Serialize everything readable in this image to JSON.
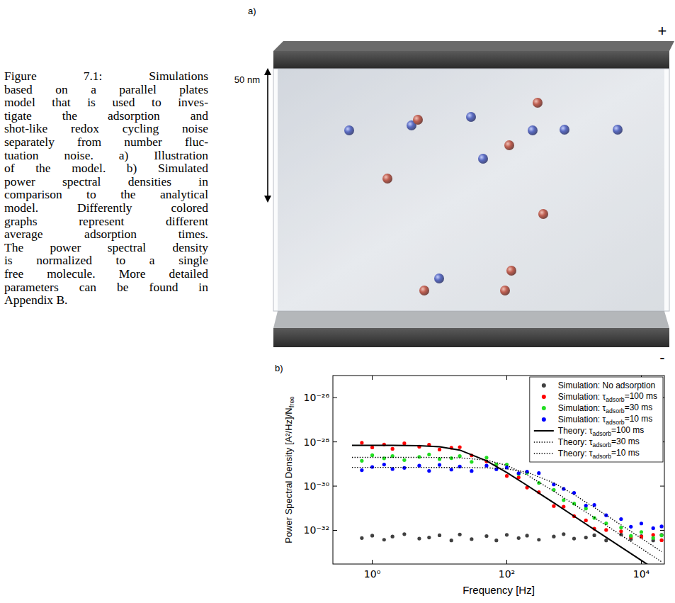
{
  "caption": {
    "lines": [
      "Figure 7.1: Simulations",
      "based on a parallel plates",
      "model that is used to inves-",
      "tigate the adsorption and",
      "shot-like redox cycling noise",
      "separately from number fluc-",
      "tuation noise. a) Illustration",
      "of the model. b) Simulated",
      "power spectral densities in",
      "comparison to the analytical",
      "model. Differently colored",
      "graphs represent different",
      "average adsorption times.",
      "The power spectral density",
      "is normalized to a single",
      "free molecule. More detailed",
      "parameters can be found in",
      "Appendix B."
    ]
  },
  "panel_a": {
    "label": "a)",
    "dimension": "50 nm",
    "positive": "+",
    "negative": "-"
  },
  "chart_data": {
    "type": "scatter",
    "panel_label": "b)",
    "x_label": "Frequency [Hz]",
    "y_label": "Power Spectral Density [A²/Hz]/Nfree",
    "log": true,
    "grid": false,
    "legend": "upper right",
    "xlim": [
      0.26,
      22000
    ],
    "ylim": [
      3e-34,
      1e-25
    ],
    "xticks": [
      {
        "value": 1,
        "label": "10⁰"
      },
      {
        "value": 100,
        "label": "10²"
      },
      {
        "value": 10000,
        "label": "10⁴"
      }
    ],
    "yticks": [
      {
        "value": 1e-32,
        "label": "10⁻³²"
      },
      {
        "value": 1e-30,
        "label": "10⁻³⁰"
      },
      {
        "value": 1e-28,
        "label": "10⁻²⁸"
      },
      {
        "value": 1e-26,
        "label": "10⁻²⁶"
      }
    ],
    "series": [
      {
        "name": "Simulation: No adsorption",
        "type": "scatter",
        "marker": "dot",
        "color": "#404040",
        "x": [
          0.7,
          1,
          1.5,
          2,
          3,
          5,
          7,
          10,
          15,
          20,
          30,
          50,
          70,
          100,
          150,
          200,
          300,
          500,
          700,
          1000,
          1500,
          2000,
          3000,
          5000,
          7000,
          10000,
          15000,
          20000
        ],
        "values": [
          4.5e-33,
          5.75e-33,
          3.75e-33,
          5.25e-33,
          6.75e-33,
          4.25e-33,
          4.75e-33,
          6e-33,
          3.5e-33,
          6.5e-33,
          4e-33,
          5.5e-33,
          3.5e-33,
          6.25e-33,
          4.5e-33,
          5.75e-33,
          3.75e-33,
          5.25e-33,
          6.75e-33,
          4.25e-33,
          4.75e-33,
          6e-33,
          3.5e-33,
          6.5e-33,
          4e-33,
          5.5e-33,
          3.5e-33,
          6.25e-33
        ]
      },
      {
        "name": "Simulation: τadsorb=100 ms",
        "type": "scatter",
        "marker": "dot",
        "color": "#ff0000",
        "x": [
          0.7,
          1,
          1.5,
          2,
          3,
          5,
          7,
          10,
          15,
          20,
          30,
          50,
          70,
          100,
          150,
          200,
          300,
          500,
          700,
          1000,
          1500,
          2000,
          3000,
          5000,
          7000,
          10000,
          15000,
          20000
        ],
        "values": [
          9.1e-29,
          5.6e-29,
          7.67e-29,
          4.87e-29,
          8.63e-29,
          6.06e-29,
          7.46e-29,
          4.52e-29,
          5.41e-29,
          5.76e-29,
          2.44e-29,
          1.33e-29,
          9.5e-30,
          2.88e-30,
          2.46e-30,
          8.64e-31,
          5.31e-31,
          1.26e-31,
          1.18e-31,
          4.38e-32,
          2.81e-32,
          1.19e-32,
          1.04e-32,
          9.11e-33,
          5.01e-33,
          5.17e-33,
          6.23e-33,
          3.58e-33
        ]
      },
      {
        "name": "Simulation: τadsorb=30 ms",
        "type": "scatter",
        "marker": "dot",
        "color": "#22dd22",
        "x": [
          0.7,
          1,
          1.5,
          2,
          3,
          5,
          7,
          10,
          15,
          20,
          30,
          50,
          70,
          100,
          150,
          200,
          300,
          500,
          700,
          1000,
          1500,
          2000,
          3000,
          5000,
          7000,
          10000,
          15000,
          20000
        ],
        "values": [
          1.4e-29,
          2.5e-29,
          1.8e-29,
          2.3e-29,
          1.5e-29,
          2.09e-29,
          2.69e-29,
          1.67e-29,
          1.84e-29,
          2.28e-29,
          1.25e-29,
          1.95e-29,
          9.68e-30,
          9.48e-30,
          3.52e-30,
          3.98e-30,
          1.4e-30,
          6.82e-31,
          2.32e-31,
          1.63e-31,
          9.72e-32,
          3.64e-32,
          2.07e-32,
          1.33e-32,
          5.66e-33,
          8.46e-33,
          4.54e-33,
          5.92e-33
        ]
      },
      {
        "name": "Simulation: τadsorb=10 ms",
        "type": "scatter",
        "marker": "dot",
        "color": "#0000ff",
        "x": [
          0.7,
          1,
          1.5,
          2,
          3,
          5,
          7,
          10,
          15,
          20,
          30,
          50,
          70,
          100,
          150,
          200,
          300,
          500,
          700,
          1000,
          1500,
          2000,
          3000,
          5000,
          7000,
          10000,
          15000,
          20000
        ],
        "values": [
          5.25e-30,
          7.35e-30,
          9.45e-30,
          5.95e-30,
          6.65e-30,
          8.4e-30,
          4.9e-30,
          9.1e-30,
          5.58e-30,
          7.66e-30,
          4.83e-30,
          8.41e-30,
          5.84e-30,
          6.93e-30,
          3.86e-30,
          4.48e-30,
          3.87e-30,
          1.19e-30,
          7.52e-31,
          4.94e-31,
          1.32e-31,
          1.4e-31,
          4.82e-32,
          3.25e-32,
          1.46e-32,
          2.05e-32,
          1.25e-32,
          1.51e-32
        ]
      },
      {
        "name": "Theory: τadsorb=100 ms",
        "type": "line",
        "line_style": "solid",
        "color": "#000000",
        "x": [
          0.5,
          1,
          2,
          5,
          10,
          20,
          50,
          100,
          200,
          500,
          1000,
          2000,
          5000,
          10000,
          20000
        ],
        "values": [
          7e-29,
          6.99e-29,
          6.96e-29,
          6.73e-29,
          6.03e-29,
          4.27e-29,
          1.4e-29,
          4.12e-30,
          1.08e-30,
          1.75e-31,
          4.37e-32,
          1.09e-32,
          1.75e-33,
          4.37e-34,
          1.09e-34
        ]
      },
      {
        "name": "Theory: τadsorb=30 ms",
        "type": "line",
        "line_style": "dotted",
        "color": "#000000",
        "x": [
          0.5,
          1,
          2,
          5,
          10,
          20,
          50,
          100,
          200,
          500,
          1000,
          2000,
          5000,
          10000,
          20000
        ],
        "values": [
          2e-29,
          2e-29,
          2e-29,
          1.99e-29,
          1.97e-29,
          1.9e-29,
          1.5e-29,
          8.62e-30,
          3.18e-30,
          5.88e-31,
          1.5e-31,
          3.78e-32,
          6.05e-33,
          1.51e-33,
          3.78e-34
        ]
      },
      {
        "name": "Theory: τadsorb=10 ms",
        "type": "line",
        "line_style": "dotted",
        "color": "#000000",
        "x": [
          0.5,
          1,
          2,
          5,
          10,
          20,
          50,
          100,
          200,
          500,
          1000,
          2000,
          5000,
          10000,
          20000
        ],
        "values": [
          7e-30,
          7e-30,
          7e-30,
          7e-30,
          6.99e-30,
          6.96e-30,
          6.73e-30,
          6.03e-30,
          4.27e-30,
          1.4e-30,
          4.12e-31,
          1.08e-31,
          1.75e-32,
          4.37e-33,
          1.09e-33
        ]
      }
    ]
  }
}
